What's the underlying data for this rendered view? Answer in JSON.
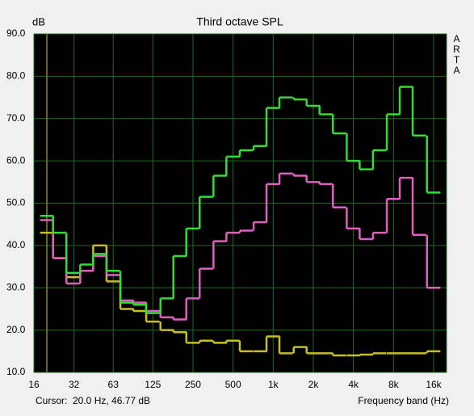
{
  "chart_data": {
    "type": "step",
    "title": "Third octave SPL",
    "y_label": "dB",
    "x_label": "Frequency band (Hz)",
    "watermark": "ARTA",
    "cursor": {
      "x": 20,
      "label": "Cursor:",
      "readout": "20.0 Hz, 46.77 dB",
      "color": "#8a8a10"
    },
    "x_scale": "log",
    "grid": true,
    "background": "#000000",
    "grid_color": "#1f6e1f",
    "xlim": [
      16,
      20000
    ],
    "ylim": [
      10,
      90
    ],
    "xticks": [
      16,
      32,
      63,
      125,
      250,
      500,
      {
        "value": 1000,
        "label": "1k"
      },
      {
        "value": 2000,
        "label": "2k"
      },
      {
        "value": 4000,
        "label": "4k"
      },
      {
        "value": 8000,
        "label": "8k"
      },
      {
        "value": 16000,
        "label": "16k"
      }
    ],
    "yticks": [
      {
        "value": 10,
        "label": "10.0"
      },
      {
        "value": 20,
        "label": "20.0"
      },
      {
        "value": 30,
        "label": "30.0"
      },
      {
        "value": 40,
        "label": "40.0"
      },
      {
        "value": 50,
        "label": "50.0"
      },
      {
        "value": 60,
        "label": "60.0"
      },
      {
        "value": 70,
        "label": "70.0"
      },
      {
        "value": 80,
        "label": "80.0"
      },
      {
        "value": 90,
        "label": "90.0"
      }
    ],
    "x": [
      20,
      25,
      31.5,
      40,
      50,
      63,
      80,
      100,
      125,
      160,
      200,
      250,
      315,
      400,
      500,
      630,
      800,
      1000,
      1250,
      1600,
      2000,
      2500,
      3150,
      4000,
      5000,
      6300,
      8000,
      10000,
      12500,
      16000
    ],
    "series": [
      {
        "color": "#c8c020",
        "values": [
          43,
          37,
          32.5,
          34,
          40,
          31.5,
          25,
          24.5,
          22,
          20,
          19.5,
          17,
          17.5,
          17,
          17.5,
          15,
          15,
          18.5,
          14.5,
          16,
          14.5,
          14.5,
          14,
          14,
          14.2,
          14.5,
          14.5,
          14.5,
          14.5,
          15
        ]
      },
      {
        "color": "#e060c0",
        "values": [
          46,
          37,
          31,
          34,
          37.5,
          33,
          27,
          26.5,
          24.5,
          23,
          22.5,
          27.5,
          34.5,
          41,
          43,
          43.5,
          45.5,
          54.5,
          57,
          56.5,
          55,
          54.5,
          49,
          44,
          41.5,
          43,
          51,
          56,
          42.5,
          30
        ]
      },
      {
        "color": "#33dd33",
        "values": [
          47,
          43,
          33.5,
          35.5,
          38,
          34,
          26.5,
          26,
          24,
          27.5,
          37.5,
          44,
          51.5,
          56.5,
          61,
          62.5,
          63.5,
          72.5,
          75,
          74.5,
          73,
          71,
          66.5,
          60,
          58,
          62.5,
          71,
          77.5,
          66,
          52.5
        ]
      }
    ]
  }
}
